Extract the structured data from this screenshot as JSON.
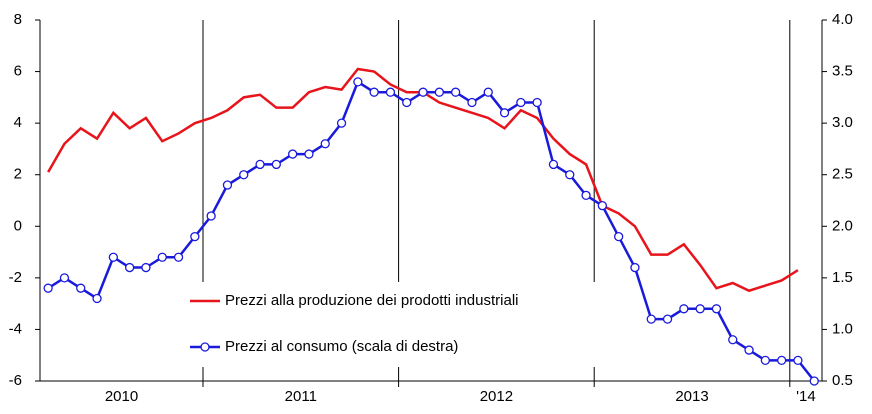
{
  "chart_data": {
    "type": "line",
    "categories": [
      null,
      null,
      null,
      null,
      null,
      null,
      null,
      null,
      null,
      null,
      null,
      null,
      null,
      null,
      null,
      null,
      null,
      null,
      null,
      null,
      null,
      null,
      null,
      null,
      null,
      null,
      null,
      null,
      null,
      null,
      null,
      null,
      null,
      null,
      null,
      null,
      null,
      null,
      null,
      null,
      null,
      null,
      null,
      null,
      null,
      null,
      null,
      null
    ],
    "year_labels": [
      "2010",
      "2011",
      "2012",
      "2013",
      "'14"
    ],
    "series": [
      {
        "name": "Prezzi alla produzione dei prodotti industriali",
        "color": "#e8141b",
        "axis": "y",
        "values": [
          2.1,
          3.2,
          3.8,
          3.4,
          4.4,
          3.8,
          4.2,
          3.3,
          3.6,
          4.0,
          4.2,
          4.5,
          5.0,
          5.1,
          4.6,
          4.6,
          5.2,
          5.4,
          5.3,
          6.1,
          6.0,
          5.5,
          5.2,
          5.2,
          4.8,
          4.6,
          4.4,
          4.2,
          3.8,
          4.5,
          4.2,
          3.4,
          2.8,
          2.4,
          0.8,
          0.5,
          0.0,
          -1.1,
          -1.1,
          -0.7,
          -1.5,
          -2.4,
          -2.2,
          -2.5,
          -2.3,
          -2.1,
          -1.7,
          null
        ]
      },
      {
        "name": "Prezzi al consumo (scala di destra)",
        "color": "#1a1adb",
        "axis": "y2",
        "marker": "circle",
        "values": [
          1.4,
          1.5,
          1.4,
          1.3,
          1.7,
          1.6,
          1.6,
          1.7,
          1.7,
          1.9,
          2.1,
          2.4,
          2.5,
          2.6,
          2.6,
          2.7,
          2.7,
          2.8,
          3.0,
          3.4,
          3.3,
          3.3,
          3.2,
          3.3,
          3.3,
          3.3,
          3.2,
          3.3,
          3.1,
          3.2,
          3.2,
          2.6,
          2.5,
          2.3,
          2.2,
          1.9,
          1.6,
          1.1,
          1.1,
          1.2,
          1.2,
          1.2,
          0.9,
          0.8,
          0.7,
          0.7,
          0.7,
          0.5
        ]
      }
    ],
    "ylim": [
      -6,
      8
    ],
    "yticks": [
      -6,
      -4,
      -2,
      0,
      2,
      4,
      6,
      8
    ],
    "y2lim": [
      0.5,
      4.0
    ],
    "y2ticks": [
      0.5,
      {
        "value": 1.0,
        "label": "1.0"
      },
      1.5,
      {
        "value": 2.0,
        "label": "2.0"
      },
      2.5,
      {
        "value": 3.0,
        "label": "3.0"
      },
      3.5,
      {
        "value": 4.0,
        "label": "4.0"
      }
    ],
    "grid": false
  }
}
